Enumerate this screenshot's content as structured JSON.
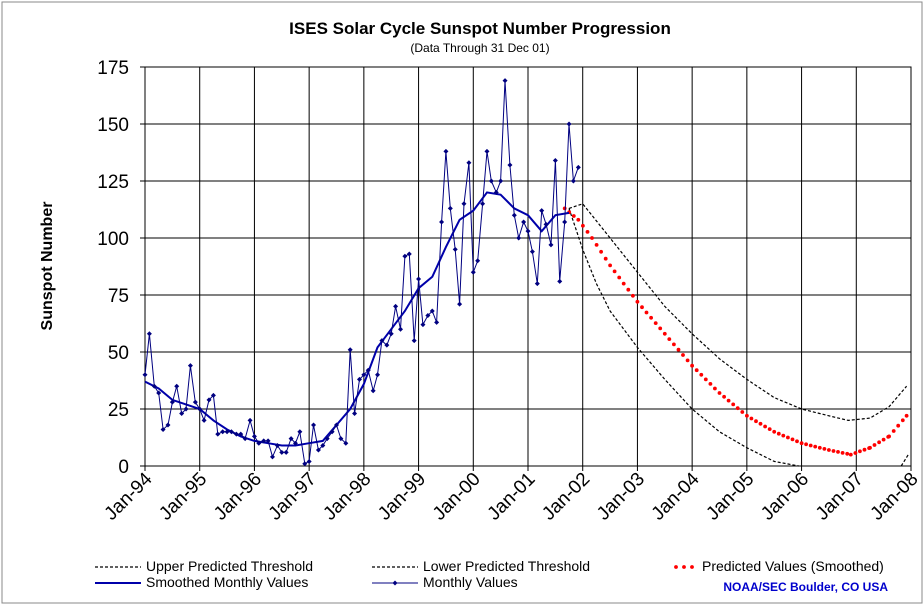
{
  "chart_data": {
    "type": "line",
    "title": "ISES Solar Cycle Sunspot Number Progression",
    "subtitle": "(Data Through 31 Dec 01)",
    "xlabel": "",
    "ylabel": "Sunspot Number",
    "xlim": [
      "Jan-94",
      "Jan-08"
    ],
    "ylim": [
      0,
      175
    ],
    "y_ticks": [
      0,
      25,
      50,
      75,
      100,
      125,
      150,
      175
    ],
    "x_ticks": [
      "Jan-94",
      "Jan-95",
      "Jan-96",
      "Jan-97",
      "Jan-98",
      "Jan-99",
      "Jan-00",
      "Jan-01",
      "Jan-02",
      "Jan-03",
      "Jan-04",
      "Jan-05",
      "Jan-06",
      "Jan-07",
      "Jan-08"
    ],
    "grid": true,
    "legend_position": "bottom",
    "credit": "NOAA/SEC Boulder, CO USA",
    "series": [
      {
        "name": "Upper Predicted Threshold",
        "style": "dashed",
        "color": "#000000",
        "x": [
          2001.75,
          2002.0,
          2002.5,
          2003.0,
          2003.5,
          2004.0,
          2004.5,
          2005.0,
          2005.5,
          2006.0,
          2006.5,
          2006.85,
          2007.25,
          2007.6,
          2007.92
        ],
        "values": [
          113,
          115,
          100,
          85,
          70,
          58,
          47,
          38,
          30,
          25,
          22,
          20,
          21,
          26,
          35
        ]
      },
      {
        "name": "Lower Predicted Threshold",
        "style": "dashed",
        "color": "#000000",
        "x": [
          2001.75,
          2002.0,
          2002.25,
          2002.5,
          2003.0,
          2003.5,
          2004.0,
          2004.5,
          2005.0,
          2005.5,
          2005.95
        ],
        "values": [
          113,
          95,
          80,
          68,
          52,
          38,
          25,
          15,
          8,
          2,
          0
        ]
      },
      {
        "name": "Lower Predicted Threshold (tail)",
        "style": "dashed",
        "color": "#000000",
        "x": [
          2007.82,
          2007.95
        ],
        "values": [
          0,
          5
        ]
      },
      {
        "name": "Predicted Values (Smoothed)",
        "style": "dots",
        "color": "#ff0000",
        "x": [
          2001.67,
          2001.92,
          2002.17,
          2002.5,
          2003.0,
          2003.5,
          2004.0,
          2004.5,
          2005.0,
          2005.5,
          2006.0,
          2006.5,
          2006.9,
          2007.25,
          2007.6,
          2007.92
        ],
        "values": [
          113,
          108,
          100,
          88,
          72,
          58,
          44,
          32,
          22,
          15,
          10,
          7,
          5,
          8,
          13,
          22
        ]
      },
      {
        "name": "Smoothed Monthly Values",
        "style": "solid",
        "color": "#0000aa",
        "x": [
          1994.0,
          1994.25,
          1994.5,
          1994.75,
          1995.0,
          1995.25,
          1995.5,
          1995.75,
          1996.0,
          1996.25,
          1996.5,
          1996.75,
          1997.0,
          1997.25,
          1997.5,
          1997.75,
          1998.0,
          1998.25,
          1998.5,
          1998.75,
          1999.0,
          1999.25,
          1999.5,
          1999.75,
          2000.0,
          2000.25,
          2000.5,
          2000.75,
          2001.0,
          2001.25,
          2001.5,
          2001.75
        ],
        "values": [
          37,
          34,
          29,
          27,
          25,
          20,
          16,
          13,
          11,
          10,
          9,
          9,
          10,
          11,
          18,
          25,
          36,
          52,
          60,
          68,
          78,
          83,
          96,
          108,
          112,
          120,
          119,
          113,
          110,
          103,
          110,
          111
        ]
      },
      {
        "name": "Monthly Values",
        "style": "markers",
        "color": "#000080",
        "x": [
          1994.0,
          1994.08,
          1994.17,
          1994.25,
          1994.33,
          1994.42,
          1994.5,
          1994.58,
          1994.67,
          1994.75,
          1994.83,
          1994.92,
          1995.0,
          1995.08,
          1995.17,
          1995.25,
          1995.33,
          1995.42,
          1995.5,
          1995.58,
          1995.67,
          1995.75,
          1995.83,
          1995.92,
          1996.0,
          1996.08,
          1996.17,
          1996.25,
          1996.33,
          1996.42,
          1996.5,
          1996.58,
          1996.67,
          1996.75,
          1996.83,
          1996.92,
          1997.0,
          1997.08,
          1997.17,
          1997.25,
          1997.33,
          1997.42,
          1997.5,
          1997.58,
          1997.67,
          1997.75,
          1997.83,
          1997.92,
          1998.0,
          1998.08,
          1998.17,
          1998.25,
          1998.33,
          1998.42,
          1998.5,
          1998.58,
          1998.67,
          1998.75,
          1998.83,
          1998.92,
          1999.0,
          1999.08,
          1999.17,
          1999.25,
          1999.33,
          1999.42,
          1999.5,
          1999.58,
          1999.67,
          1999.75,
          1999.83,
          1999.92,
          2000.0,
          2000.08,
          2000.17,
          2000.25,
          2000.33,
          2000.42,
          2000.5,
          2000.58,
          2000.67,
          2000.75,
          2000.83,
          2000.92,
          2001.0,
          2001.08,
          2001.17,
          2001.25,
          2001.33,
          2001.42,
          2001.5,
          2001.58,
          2001.67,
          2001.75,
          2001.83,
          2001.92
        ],
        "values": [
          40,
          58,
          35,
          32,
          16,
          18,
          28,
          35,
          23,
          25,
          44,
          28,
          25,
          20,
          29,
          31,
          14,
          15,
          15,
          15,
          14,
          14,
          12,
          20,
          13,
          10,
          11,
          11,
          4,
          9,
          6,
          6,
          12,
          10,
          15,
          1,
          2,
          18,
          7,
          9,
          12,
          15,
          18,
          12,
          10,
          51,
          23,
          38,
          40,
          42,
          33,
          40,
          55,
          53,
          58,
          70,
          60,
          92,
          93,
          55,
          82,
          62,
          66,
          68,
          63,
          107,
          138,
          113,
          95,
          71,
          115,
          133,
          85,
          90,
          115,
          138,
          125,
          120,
          125,
          169,
          132,
          110,
          100,
          107,
          103,
          94,
          80,
          112,
          106,
          97,
          134,
          81,
          107,
          150,
          125,
          131
        ]
      }
    ]
  }
}
